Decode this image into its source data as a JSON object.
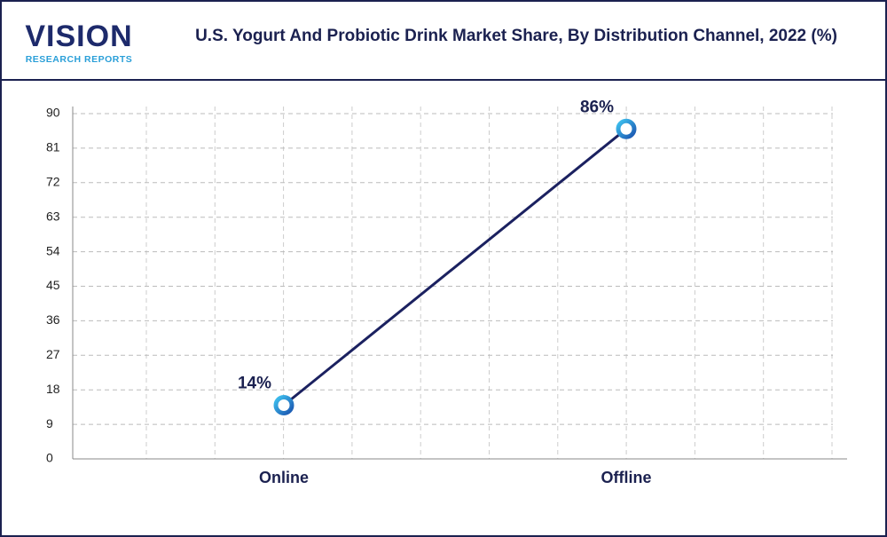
{
  "logo": {
    "name": "VISION",
    "tagline": "RESEARCH REPORTS"
  },
  "chart_data": {
    "type": "line",
    "title": "U.S. Yogurt And Probiotic Drink Market Share, By Distribution Channel, 2022 (%)",
    "categories": [
      "Online",
      "Offline"
    ],
    "values": [
      14,
      86
    ],
    "value_labels": [
      "14%",
      "86%"
    ],
    "color": "#1b2160",
    "ylim": [
      0,
      90
    ],
    "yticks": [
      0,
      9,
      18,
      27,
      36,
      45,
      54,
      63,
      72,
      81,
      90
    ],
    "grid": true
  }
}
